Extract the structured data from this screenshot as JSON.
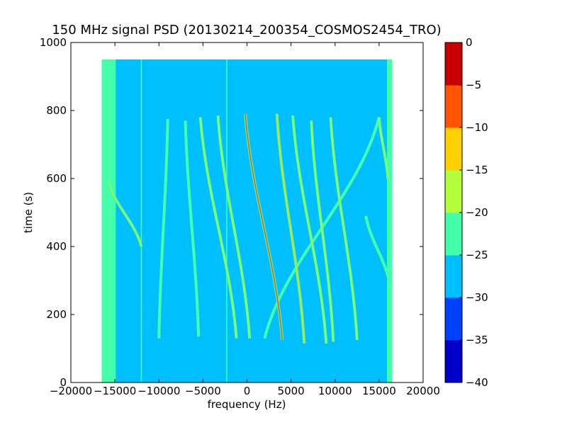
{
  "chart_data": {
    "type": "heatmap",
    "title": "150 MHz signal PSD (20130214_200354_COSMOS2454_TRO)",
    "xlabel": "frequency (Hz)",
    "ylabel": "time (s)",
    "xlim": [
      -20000,
      20000
    ],
    "ylim": [
      0,
      1000
    ],
    "xticks": [
      -20000,
      -15000,
      -10000,
      -5000,
      0,
      5000,
      10000,
      15000,
      20000
    ],
    "xtick_labels": [
      "−20000",
      "−15000",
      "−10000",
      "−5000",
      "0",
      "5000",
      "10000",
      "15000",
      "20000"
    ],
    "yticks": [
      0,
      200,
      400,
      600,
      800,
      1000
    ],
    "ytick_labels": [
      "0",
      "200",
      "400",
      "600",
      "800",
      "1000"
    ],
    "data_extent": {
      "x": [
        -16500,
        16500
      ],
      "y": [
        0,
        950
      ]
    },
    "background_level_db": -27,
    "edge_band_level_db": -22,
    "colorbar": {
      "levels": [
        -40,
        -35,
        -30,
        -25,
        -20,
        -15,
        -10,
        -5,
        0
      ],
      "tick_labels": [
        "−40",
        "−35",
        "−30",
        "−25",
        "−20",
        "−15",
        "−10",
        "−5",
        "0"
      ],
      "colors": [
        "#0000c8",
        "#0040ff",
        "#00bfff",
        "#44ffaa",
        "#b3ff3b",
        "#ffd000",
        "#ff5500",
        "#c80000"
      ]
    },
    "vertical_lines_hz": [
      -12000,
      -2300
    ],
    "traces": [
      {
        "name": "",
        "x_start": 15000,
        "x_end": 2000,
        "t_start": 780,
        "t_end": 130,
        "peak_db": -22
      },
      {
        "name": "",
        "x_start": -15700,
        "x_end": -12000,
        "t_start": 590,
        "t_end": 400,
        "peak_db": -20
      },
      {
        "name": "",
        "x_start": -9000,
        "x_end": -10000,
        "t_start": 775,
        "t_end": 130,
        "peak_db": -22
      },
      {
        "name": "",
        "x_start": -7000,
        "x_end": -5500,
        "t_start": 770,
        "t_end": 135,
        "peak_db": -22
      },
      {
        "name": "",
        "x_start": -5300,
        "x_end": -1200,
        "t_start": 780,
        "t_end": 130,
        "peak_db": -18
      },
      {
        "name": "",
        "x_start": -3300,
        "x_end": 300,
        "t_start": 785,
        "t_end": 130,
        "peak_db": -18
      },
      {
        "name": "",
        "x_start": -200,
        "x_end": 4000,
        "t_start": 790,
        "t_end": 125,
        "peak_db": -10
      },
      {
        "name": "",
        "x_start": 3400,
        "x_end": 6500,
        "t_start": 790,
        "t_end": 115,
        "peak_db": -12
      },
      {
        "name": "",
        "x_start": 5200,
        "x_end": 9000,
        "t_start": 785,
        "t_end": 115,
        "peak_db": -16
      },
      {
        "name": "",
        "x_start": 7300,
        "x_end": 9800,
        "t_start": 770,
        "t_end": 120,
        "peak_db": -20
      },
      {
        "name": "",
        "x_start": 9500,
        "x_end": 12500,
        "t_start": 780,
        "t_end": 125,
        "peak_db": -20
      },
      {
        "name": "",
        "x_start": 13500,
        "x_end": 16200,
        "t_start": 490,
        "t_end": 290,
        "peak_db": -22
      },
      {
        "name": "",
        "x_start": 15000,
        "x_end": 16000,
        "t_start": 780,
        "t_end": 600,
        "peak_db": -20
      }
    ]
  }
}
